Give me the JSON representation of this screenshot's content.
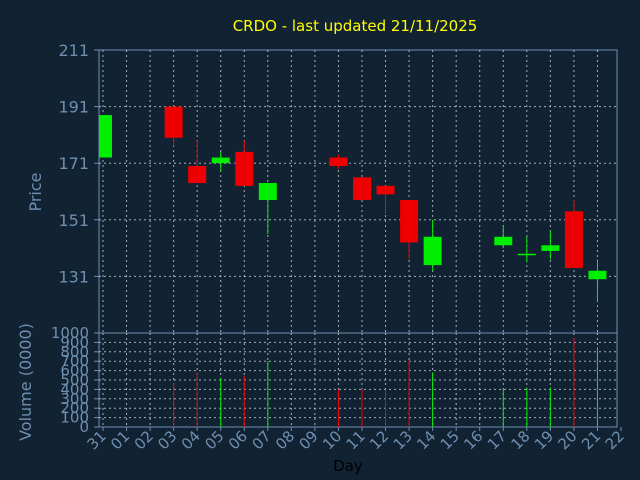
{
  "chart_data": {
    "type": "candlestick",
    "title": "CRDO - last updated 21/11/2025",
    "ylabel": "Price",
    "volume_label": "Volume (0000)",
    "xlabel": "Day",
    "x_ticks": [
      "31",
      "01",
      "02",
      "03",
      "04",
      "05",
      "06",
      "07",
      "08",
      "09",
      "10",
      "11",
      "12",
      "13",
      "14",
      "15",
      "16",
      "17",
      "18",
      "19",
      "20",
      "21",
      "22"
    ],
    "price_ylim": [
      111,
      211
    ],
    "price_ticks": [
      "211",
      "191",
      "171",
      "151",
      "131"
    ],
    "volume_ylim": [
      0,
      1000
    ],
    "volume_ticks": [
      "1000",
      "900",
      "800",
      "700",
      "600",
      "500",
      "400",
      "300",
      "200",
      "100",
      "0"
    ],
    "grid": true,
    "up_color": "#00ee00",
    "down_color": "#ee0000",
    "candles": [
      {
        "x": 0,
        "open": 173,
        "high": 188,
        "low": 173,
        "close": 188,
        "volume": 0
      },
      {
        "x": 3,
        "open": 191,
        "high": 191,
        "low": 177,
        "close": 180,
        "volume": 470
      },
      {
        "x": 4,
        "open": 170,
        "high": 179,
        "low": 164,
        "close": 164,
        "volume": 580
      },
      {
        "x": 5,
        "open": 171,
        "high": 175,
        "low": 168,
        "close": 173,
        "volume": 520
      },
      {
        "x": 6,
        "open": 175,
        "high": 179,
        "low": 163,
        "close": 163,
        "volume": 540
      },
      {
        "x": 7,
        "open": 158,
        "high": 164,
        "low": 146,
        "close": 164,
        "volume": 700
      },
      {
        "x": 10,
        "open": 173,
        "high": 174,
        "low": 169,
        "close": 170,
        "volume": 400
      },
      {
        "x": 11,
        "open": 166,
        "high": 166,
        "low": 158,
        "close": 158,
        "volume": 400
      },
      {
        "x": 12,
        "open": 163,
        "high": 163,
        "low": 153,
        "close": 160,
        "volume": 400
      },
      {
        "x": 13,
        "open": 158,
        "high": 158,
        "low": 137,
        "close": 143,
        "volume": 710
      },
      {
        "x": 14,
        "open": 135,
        "high": 151,
        "low": 133,
        "close": 145,
        "volume": 580
      },
      {
        "x": 17,
        "open": 142,
        "high": 149,
        "low": 141,
        "close": 145,
        "volume": 400
      },
      {
        "x": 18,
        "open": 139,
        "high": 145,
        "low": 136,
        "close": 139,
        "volume": 420
      },
      {
        "x": 19,
        "open": 140,
        "high": 147,
        "low": 137,
        "close": 142,
        "volume": 420
      },
      {
        "x": 20,
        "open": 154,
        "high": 158,
        "low": 134,
        "close": 134,
        "volume": 950
      },
      {
        "x": 21,
        "open": 130,
        "high": 137,
        "low": 122,
        "close": 133,
        "volume": 850
      }
    ]
  }
}
